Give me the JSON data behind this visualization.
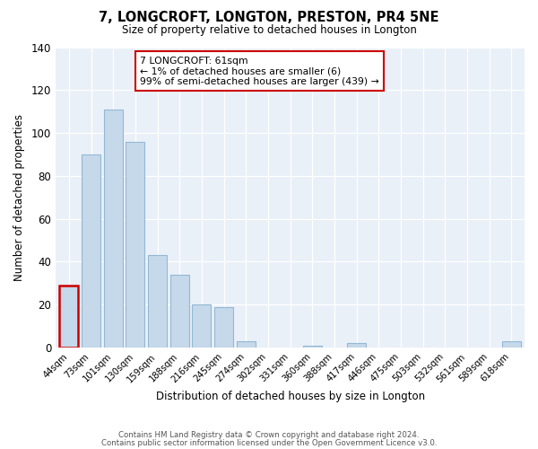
{
  "title": "7, LONGCROFT, LONGTON, PRESTON, PR4 5NE",
  "subtitle": "Size of property relative to detached houses in Longton",
  "xlabel": "Distribution of detached houses by size in Longton",
  "ylabel": "Number of detached properties",
  "categories": [
    "44sqm",
    "73sqm",
    "101sqm",
    "130sqm",
    "159sqm",
    "188sqm",
    "216sqm",
    "245sqm",
    "274sqm",
    "302sqm",
    "331sqm",
    "360sqm",
    "388sqm",
    "417sqm",
    "446sqm",
    "475sqm",
    "503sqm",
    "532sqm",
    "561sqm",
    "589sqm",
    "618sqm"
  ],
  "values": [
    29,
    90,
    111,
    96,
    43,
    34,
    20,
    19,
    3,
    0,
    0,
    1,
    0,
    2,
    0,
    0,
    0,
    0,
    0,
    0,
    3
  ],
  "bar_color": "#c5d9ea",
  "highlight_bar_index": 0,
  "highlight_bar_edge_color": "#cc0000",
  "normal_bar_edge_color": "#92b8d4",
  "ylim": [
    0,
    140
  ],
  "yticks": [
    0,
    20,
    40,
    60,
    80,
    100,
    120,
    140
  ],
  "annotation_text": "7 LONGCROFT: 61sqm\n← 1% of detached houses are smaller (6)\n99% of semi-detached houses are larger (439) →",
  "footer_line1": "Contains HM Land Registry data © Crown copyright and database right 2024.",
  "footer_line2": "Contains public sector information licensed under the Open Government Licence v3.0.",
  "background_color": "#ffffff",
  "plot_bg_color": "#eaf0f8",
  "grid_color": "#ffffff"
}
